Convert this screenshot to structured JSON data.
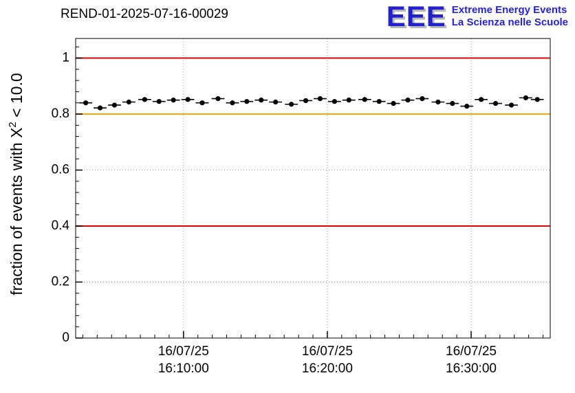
{
  "header": {
    "title": "REND-01-2025-07-16-00029",
    "logo": {
      "acronym": "EEE",
      "line1": "Extreme Energy Events",
      "line2": "La Scienza nelle Scuole",
      "color": "#2222cc"
    }
  },
  "y_axis_label": {
    "prefix": "fraction of events with X",
    "sup": "2",
    "suffix": " < 10.0"
  },
  "chart_data": {
    "type": "scatter",
    "title": "REND-01-2025-07-16-00029",
    "xlabel": "",
    "ylabel": "fraction of events with X^2 < 10.0",
    "ylim": [
      0,
      1.07
    ],
    "x_minutes_range": [
      2.5,
      35.5
    ],
    "grid": true,
    "legend": "none",
    "colors": {
      "marker": "#000000",
      "grid": "#999999",
      "limit_line": "#e50000",
      "target_line": "#ffa500"
    },
    "reference_lines": [
      {
        "name": "upper-limit-line",
        "y": 1.0,
        "color": "#e50000"
      },
      {
        "name": "target-line",
        "y": 0.8,
        "color": "#ffa500"
      },
      {
        "name": "lower-limit-line",
        "y": 0.4,
        "color": "#e50000"
      }
    ],
    "y_ticks": [
      {
        "v": 0,
        "label": "0"
      },
      {
        "v": 0.2,
        "label": "0.2"
      },
      {
        "v": 0.4,
        "label": "0.4"
      },
      {
        "v": 0.6,
        "label": "0.6"
      },
      {
        "v": 0.8,
        "label": "0.8"
      },
      {
        "v": 1,
        "label": "1"
      }
    ],
    "x_ticks": [
      {
        "minutes": 10,
        "date": "16/07/25",
        "time": "16:10:00"
      },
      {
        "minutes": 20,
        "date": "16/07/25",
        "time": "16:20:00"
      },
      {
        "minutes": 30,
        "date": "16/07/25",
        "time": "16:30:00"
      }
    ],
    "series": [
      {
        "name": "fraction_chi2_lt_10",
        "marker": "filled-circle",
        "color": "#000000",
        "x_err_minutes": 0.45,
        "y_err": 0.008,
        "points": [
          [
            3.2,
            0.84
          ],
          [
            4.2,
            0.822
          ],
          [
            5.2,
            0.832
          ],
          [
            6.2,
            0.843
          ],
          [
            7.3,
            0.852
          ],
          [
            8.3,
            0.845
          ],
          [
            9.3,
            0.85
          ],
          [
            10.3,
            0.852
          ],
          [
            11.3,
            0.84
          ],
          [
            12.4,
            0.855
          ],
          [
            13.4,
            0.84
          ],
          [
            14.4,
            0.845
          ],
          [
            15.4,
            0.85
          ],
          [
            16.4,
            0.843
          ],
          [
            17.5,
            0.835
          ],
          [
            18.5,
            0.848
          ],
          [
            19.5,
            0.855
          ],
          [
            20.5,
            0.845
          ],
          [
            21.5,
            0.85
          ],
          [
            22.6,
            0.852
          ],
          [
            23.6,
            0.845
          ],
          [
            24.6,
            0.838
          ],
          [
            25.6,
            0.85
          ],
          [
            26.6,
            0.855
          ],
          [
            27.7,
            0.843
          ],
          [
            28.7,
            0.838
          ],
          [
            29.7,
            0.828
          ],
          [
            30.7,
            0.852
          ],
          [
            31.7,
            0.838
          ],
          [
            32.8,
            0.832
          ],
          [
            33.8,
            0.858
          ],
          [
            34.6,
            0.852
          ]
        ]
      }
    ]
  }
}
